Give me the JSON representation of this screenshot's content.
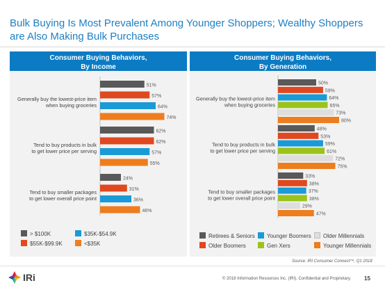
{
  "title": "Bulk Buying Is Most Prevalent Among Younger Shoppers; Wealthy Shoppers are Also Making Bulk Purchases",
  "chart_data": [
    {
      "type": "bar",
      "orientation": "horizontal",
      "title": "Consumer Buying Behaviors, By Income",
      "categories": [
        "Generally buy the lowest-price item when buying groceries",
        "Tend to buy products in bulk to get lower price per serving",
        "Tend to buy smaller packages to get lower overall price point"
      ],
      "series": [
        {
          "name": "> $100K",
          "color": "#595959",
          "values": [
            51,
            62,
            24
          ]
        },
        {
          "name": "$55K-$99.9K",
          "color": "#e0481f",
          "values": [
            57,
            62,
            31
          ]
        },
        {
          "name": "$35K-$54.9K",
          "color": "#1a9ad6",
          "values": [
            64,
            57,
            36
          ]
        },
        {
          "name": "<$35K",
          "color": "#ee7d1d",
          "values": [
            74,
            55,
            46
          ]
        }
      ],
      "value_suffix": "%",
      "legend_position": "bottom"
    },
    {
      "type": "bar",
      "orientation": "horizontal",
      "title": "Consumer Buying Behaviors, By Generation",
      "categories": [
        "Generally buy the lowest-price item when buying groceries",
        "Tend to buy products in bulk to get lower price per serving",
        "Tend to buy smaller packages to get lower overall price point"
      ],
      "series": [
        {
          "name": "Retirees & Seniors",
          "color": "#595959",
          "values": [
            50,
            48,
            33
          ]
        },
        {
          "name": "Older Boomers",
          "color": "#e0481f",
          "values": [
            59,
            53,
            38
          ]
        },
        {
          "name": "Younger Boomers",
          "color": "#1a9ad6",
          "values": [
            64,
            59,
            37
          ]
        },
        {
          "name": "Gen Xers",
          "color": "#9bc31c",
          "values": [
            65,
            61,
            38
          ]
        },
        {
          "name": "Older Millennials",
          "color": "#dedede",
          "values": [
            73,
            72,
            29
          ]
        },
        {
          "name": "Younger Millennials",
          "color": "#ee7d1d",
          "values": [
            80,
            75,
            47
          ]
        }
      ],
      "value_suffix": "%",
      "legend_position": "bottom"
    }
  ],
  "panels": [
    {
      "title_line1": "Consumer Buying Behaviors,",
      "title_line2": "By Income"
    },
    {
      "title_line1": "Consumer Buying Behaviors,",
      "title_line2": "By Generation"
    }
  ],
  "categories_lines": [
    [
      "Generally buy the lowest-price item",
      "when buying groceries"
    ],
    [
      "Tend to buy products in bulk",
      "to get lower price per serving"
    ],
    [
      "Tend to buy smaller packages",
      "to get lower overall price point"
    ]
  ],
  "source": "Source: IRI Consumer Connect™, Q1 2018",
  "copyright": "© 2018 Information Resources Inc. (IRI). Confidential and Proprietary.",
  "page_number": "15",
  "logo_text": "IRi"
}
